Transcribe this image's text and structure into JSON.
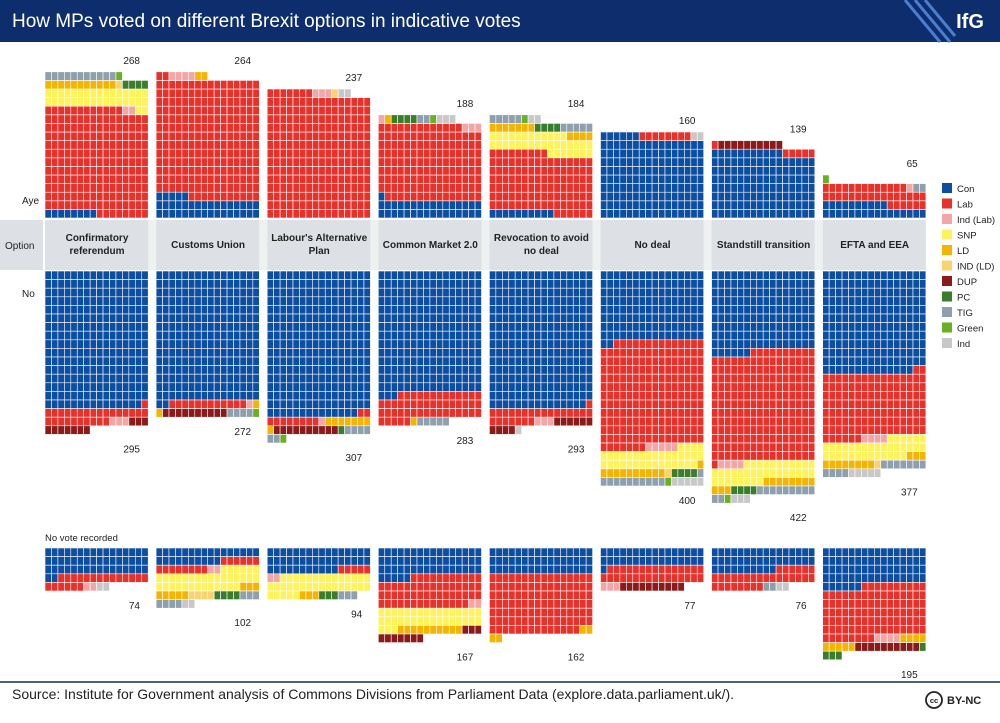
{
  "logo": "IfG",
  "license": "BY-NC",
  "chart_data": {
    "type": "waffle",
    "title": "How MPs voted on different Brexit options in indicative votes",
    "source": "Source: Institute for Government analysis of Commons Divisions from Parliament Data (explore.data.parliament.uk/).",
    "row_labels": {
      "aye": "Aye",
      "option": "Option",
      "no": "No",
      "novote": "No vote recorded"
    },
    "parties": [
      {
        "name": "Con",
        "color": "#0b4ea2"
      },
      {
        "name": "Lab",
        "color": "#e8312a"
      },
      {
        "name": "Ind (Lab)",
        "color": "#f4a6a6"
      },
      {
        "name": "SNP",
        "color": "#fff35c"
      },
      {
        "name": "LD",
        "color": "#f5b400"
      },
      {
        "name": "IND (LD)",
        "color": "#fcd26e"
      },
      {
        "name": "DUP",
        "color": "#8b1a1a"
      },
      {
        "name": "PC",
        "color": "#3a7d2c"
      },
      {
        "name": "TIG",
        "color": "#8ea0ae"
      },
      {
        "name": "Green",
        "color": "#6ab023"
      },
      {
        "name": "Ind",
        "color": "#c8c8c8"
      }
    ],
    "options": [
      {
        "label": "Confirmatory referendum",
        "aye": [
          8,
          196,
          2,
          34,
          11,
          1,
          0,
          4,
          11,
          1,
          0
        ],
        "aye_total": 268,
        "no": [
          255,
          27,
          3,
          0,
          0,
          0,
          10,
          0,
          0,
          0,
          0
        ],
        "no_total": 295,
        "novote": [
          50,
          20,
          2,
          0,
          0,
          0,
          0,
          0,
          0,
          0,
          2
        ],
        "novote_total": 74
      },
      {
        "label": "Customs Union",
        "aye": [
          37,
          221,
          4,
          0,
          2,
          0,
          0,
          0,
          0,
          0,
          0
        ],
        "aye_total": 264,
        "no": [
          242,
          12,
          1,
          0,
          2,
          0,
          10,
          0,
          4,
          1,
          0
        ],
        "no_total": 272,
        "novote": [
          26,
          14,
          2,
          35,
          8,
          4,
          0,
          4,
          7,
          0,
          2
        ],
        "novote_total": 102
      },
      {
        "label": "Labour's Alternative Plan",
        "aye": [
          0,
          231,
          3,
          0,
          0,
          1,
          0,
          0,
          0,
          0,
          2
        ],
        "aye_total": 237,
        "no": [
          270,
          10,
          1,
          0,
          8,
          0,
          10,
          1,
          6,
          1,
          0
        ],
        "no_total": 307,
        "novote": [
          43,
          5,
          2,
          35,
          3,
          0,
          0,
          3,
          3,
          0,
          0
        ],
        "novote_total": 94
      },
      {
        "label": "Common Market 2.0",
        "aye": [
          33,
          140,
          4,
          0,
          1,
          0,
          0,
          4,
          2,
          1,
          3
        ],
        "aye_total": 188,
        "no": [
          227,
          50,
          0,
          0,
          1,
          0,
          0,
          0,
          5,
          0,
          0
        ],
        "no_total": 283,
        "novote": [
          53,
          57,
          2,
          35,
          10,
          0,
          10,
          0,
          0,
          0,
          0
        ],
        "novote_total": 167
      },
      {
        "label": "Revocation to avoid no deal",
        "aye": [
          10,
          111,
          0,
          35,
          11,
          0,
          0,
          4,
          10,
          1,
          2
        ],
        "aye_total": 184,
        "no": [
          255,
          24,
          3,
          0,
          0,
          0,
          10,
          0,
          0,
          0,
          1
        ],
        "no_total": 293,
        "novote": [
          48,
          110,
          0,
          0,
          4,
          0,
          0,
          0,
          0,
          0,
          0
        ],
        "novote_total": 162
      },
      {
        "label": "No deal",
        "aye": [
          150,
          8,
          0,
          0,
          0,
          0,
          0,
          0,
          0,
          0,
          2
        ],
        "aye_total": 160,
        "no": [
          130,
          197,
          5,
          35,
          11,
          1,
          0,
          4,
          11,
          1,
          5
        ],
        "no_total": 400,
        "novote": [
          33,
          31,
          3,
          0,
          0,
          0,
          10,
          0,
          0,
          0,
          0
        ],
        "novote_total": 77
      },
      {
        "label": "Standstill transition",
        "aye": [
          123,
          6,
          0,
          0,
          0,
          0,
          10,
          0,
          0,
          0,
          0
        ],
        "aye_total": 139,
        "no": [
          150,
          203,
          4,
          35,
          11,
          0,
          0,
          4,
          11,
          1,
          3
        ],
        "no_total": 422,
        "novote": [
          42,
          30,
          0,
          0,
          0,
          0,
          0,
          0,
          2,
          0,
          2
        ],
        "novote_total": 76
      },
      {
        "label": "EFTA and EEA",
        "aye": [
          26,
          35,
          1,
          0,
          0,
          0,
          0,
          0,
          2,
          1,
          0
        ],
        "aye_total": 65,
        "no": [
          190,
          120,
          4,
          35,
          11,
          1,
          0,
          0,
          11,
          0,
          5
        ],
        "no_total": 377,
        "novote": [
          70,
          98,
          4,
          0,
          9,
          0,
          10,
          4,
          0,
          0,
          0
        ],
        "novote_total": 195
      }
    ]
  }
}
